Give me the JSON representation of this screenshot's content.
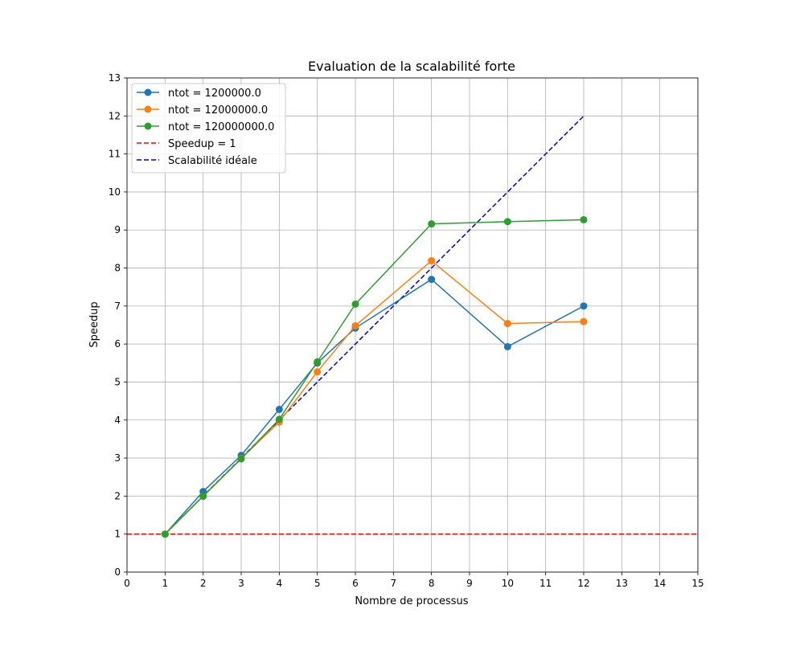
{
  "chart_data": {
    "type": "line",
    "title": "Evaluation de la scalabilité forte",
    "xlabel": "Nombre de processus",
    "ylabel": "Speedup",
    "xlim": [
      0,
      15
    ],
    "ylim": [
      0,
      13
    ],
    "xticks": [
      "0",
      "1",
      "2",
      "3",
      "4",
      "5",
      "6",
      "7",
      "8",
      "9",
      "10",
      "11",
      "12",
      "13",
      "14",
      "15"
    ],
    "yticks": [
      "0",
      "1",
      "2",
      "3",
      "4",
      "5",
      "6",
      "7",
      "8",
      "9",
      "10",
      "11",
      "12",
      "13"
    ],
    "grid": true,
    "legend_position": "top-left",
    "x": [
      1,
      2,
      3,
      4,
      5,
      6,
      8,
      10,
      12
    ],
    "series": [
      {
        "name": "ntot = 1200000.0",
        "color": "#1f77b4",
        "style": "solid-marker",
        "values": [
          1.0,
          2.12,
          3.07,
          4.28,
          5.5,
          6.42,
          7.7,
          5.93,
          7.0
        ]
      },
      {
        "name": "ntot = 12000000.0",
        "color": "#ff7f0e",
        "style": "solid-marker",
        "values": [
          1.0,
          1.99,
          2.99,
          3.95,
          5.27,
          6.48,
          8.19,
          6.54,
          6.59
        ]
      },
      {
        "name": "ntot = 120000000.0",
        "color": "#2ca02c",
        "style": "solid-marker",
        "values": [
          1.0,
          2.0,
          2.98,
          4.02,
          5.53,
          7.05,
          9.16,
          9.22,
          9.27
        ]
      }
    ],
    "reference_lines": [
      {
        "name": "Speedup = 1",
        "color": "#ff0000",
        "style": "dashed",
        "type": "hline",
        "y": 1
      },
      {
        "name": "Scalabilité idéale",
        "color": "#0000cc",
        "style": "dashed",
        "type": "line",
        "x": [
          1,
          12
        ],
        "y": [
          1,
          12
        ]
      }
    ]
  }
}
